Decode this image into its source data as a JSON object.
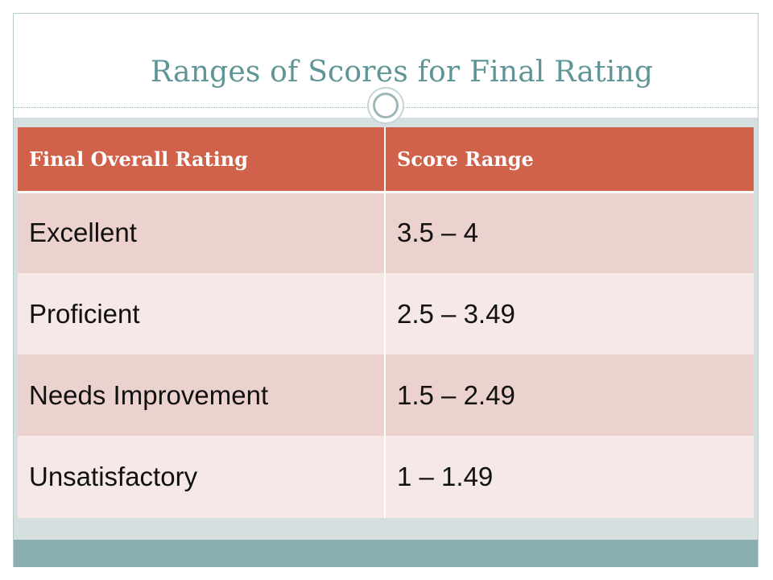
{
  "slide": {
    "title": "Ranges of Scores for Final Rating"
  },
  "table": {
    "headers": [
      "Final Overall Rating",
      "Score Range"
    ],
    "rows": [
      [
        "Excellent",
        "3.5 – 4"
      ],
      [
        "Proficient",
        "2.5 – 3.49"
      ],
      [
        "Needs Improvement",
        "1.5 – 2.49"
      ],
      [
        "Unsatisfactory",
        "1 – 1.49"
      ]
    ]
  },
  "colors": {
    "title": "#5f9596",
    "header_fill": "#d0624b",
    "row_dark": "#ecd2cf",
    "row_light": "#f5e8e7",
    "body_background": "#d5dfe0",
    "bottom_bar": "#8aaeaf"
  }
}
